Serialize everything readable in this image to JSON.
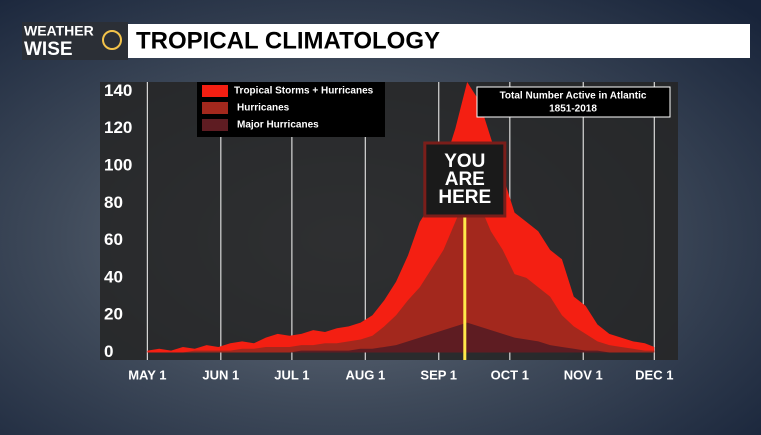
{
  "logo": [
    "WEATHER",
    "WISE"
  ],
  "chart_data": {
    "type": "area",
    "title": "TROPICAL CLIMATOLOGY",
    "annotation": {
      "text": "Total Number Active in Atlantic",
      "subtext": "1851-2018"
    },
    "marker": {
      "lines": [
        "YOU",
        "ARE",
        "HERE"
      ],
      "x": 134,
      "color": "#ffe94a"
    },
    "x": [
      0,
      5,
      10,
      15,
      20,
      25,
      30,
      35,
      40,
      45,
      50,
      55,
      60,
      65,
      70,
      75,
      80,
      85,
      90,
      95,
      100,
      105,
      110,
      115,
      120,
      125,
      130,
      135,
      140,
      145,
      150,
      155,
      160,
      165,
      170,
      175,
      180,
      185,
      190,
      195,
      200,
      205,
      210,
      214
    ],
    "series": [
      {
        "name": "Tropical Storms + Hurricanes",
        "color": "#f41f12",
        "values": [
          1,
          2,
          1,
          3,
          2,
          4,
          3,
          5,
          6,
          5,
          8,
          10,
          9,
          10,
          12,
          11,
          13,
          14,
          16,
          20,
          28,
          38,
          52,
          70,
          80,
          100,
          120,
          145,
          135,
          115,
          95,
          75,
          70,
          65,
          55,
          50,
          30,
          25,
          15,
          10,
          8,
          6,
          5,
          3
        ]
      },
      {
        "name": "Hurricanes",
        "color": "#a3281d",
        "values": [
          0,
          0,
          0,
          0,
          1,
          1,
          1,
          1,
          2,
          2,
          3,
          3,
          3,
          4,
          4,
          5,
          5,
          6,
          7,
          9,
          14,
          20,
          28,
          35,
          45,
          55,
          70,
          85,
          80,
          65,
          55,
          42,
          40,
          35,
          30,
          20,
          14,
          10,
          6,
          4,
          3,
          2,
          1,
          1
        ]
      },
      {
        "name": "Major Hurricanes",
        "color": "#5e1c22",
        "values": [
          0,
          0,
          0,
          0,
          0,
          0,
          0,
          0,
          0,
          0,
          0,
          0,
          0,
          1,
          1,
          1,
          1,
          1,
          2,
          2,
          3,
          4,
          6,
          8,
          10,
          12,
          14,
          16,
          14,
          12,
          10,
          8,
          7,
          6,
          4,
          3,
          2,
          1,
          1,
          0,
          0,
          0,
          0,
          0
        ]
      }
    ],
    "xlim": [
      -20,
      224
    ],
    "xticks": [
      {
        "value": 0,
        "label": "MAY 1"
      },
      {
        "value": 31,
        "label": "JUN 1"
      },
      {
        "value": 61,
        "label": "JUL 1"
      },
      {
        "value": 92,
        "label": "AUG 1"
      },
      {
        "value": 123,
        "label": "SEP 1"
      },
      {
        "value": 153,
        "label": "OCT 1"
      },
      {
        "value": 184,
        "label": "NOV 1"
      },
      {
        "value": 214,
        "label": "DEC 1"
      }
    ],
    "ylim": [
      -4,
      145
    ],
    "yticks": [
      0,
      20,
      40,
      60,
      80,
      100,
      120,
      140
    ],
    "grid": "x"
  }
}
